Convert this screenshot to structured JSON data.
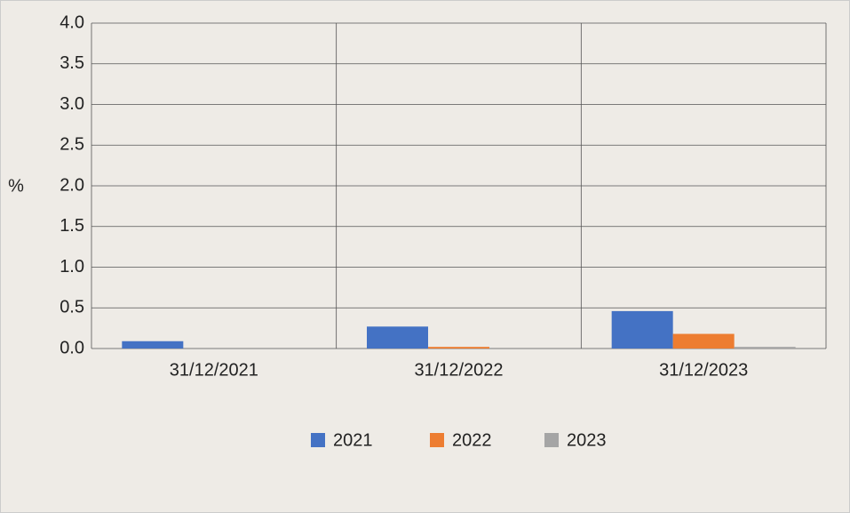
{
  "chart_data": {
    "type": "bar",
    "y_label": "%",
    "categories": [
      "31/12/2021",
      "31/12/2022",
      "31/12/2023"
    ],
    "series": [
      {
        "name": "2021",
        "color": "#4472c4",
        "values": [
          0.09,
          0.27,
          0.46
        ]
      },
      {
        "name": "2022",
        "color": "#ed7d31",
        "values": [
          0,
          0.02,
          0.18
        ]
      },
      {
        "name": "2023",
        "color": "#a5a5a5",
        "values": [
          0,
          0,
          0.02
        ]
      }
    ],
    "ylim": [
      0,
      4
    ],
    "yticks": [
      {
        "value": 0,
        "label": "0.0"
      },
      0.5,
      {
        "value": 1,
        "label": "1.0"
      },
      1.5,
      {
        "value": 2,
        "label": "2.0"
      },
      2.5,
      {
        "value": 3,
        "label": "3.0"
      },
      3.5,
      {
        "value": 4,
        "label": "4.0"
      }
    ],
    "grid": true
  }
}
